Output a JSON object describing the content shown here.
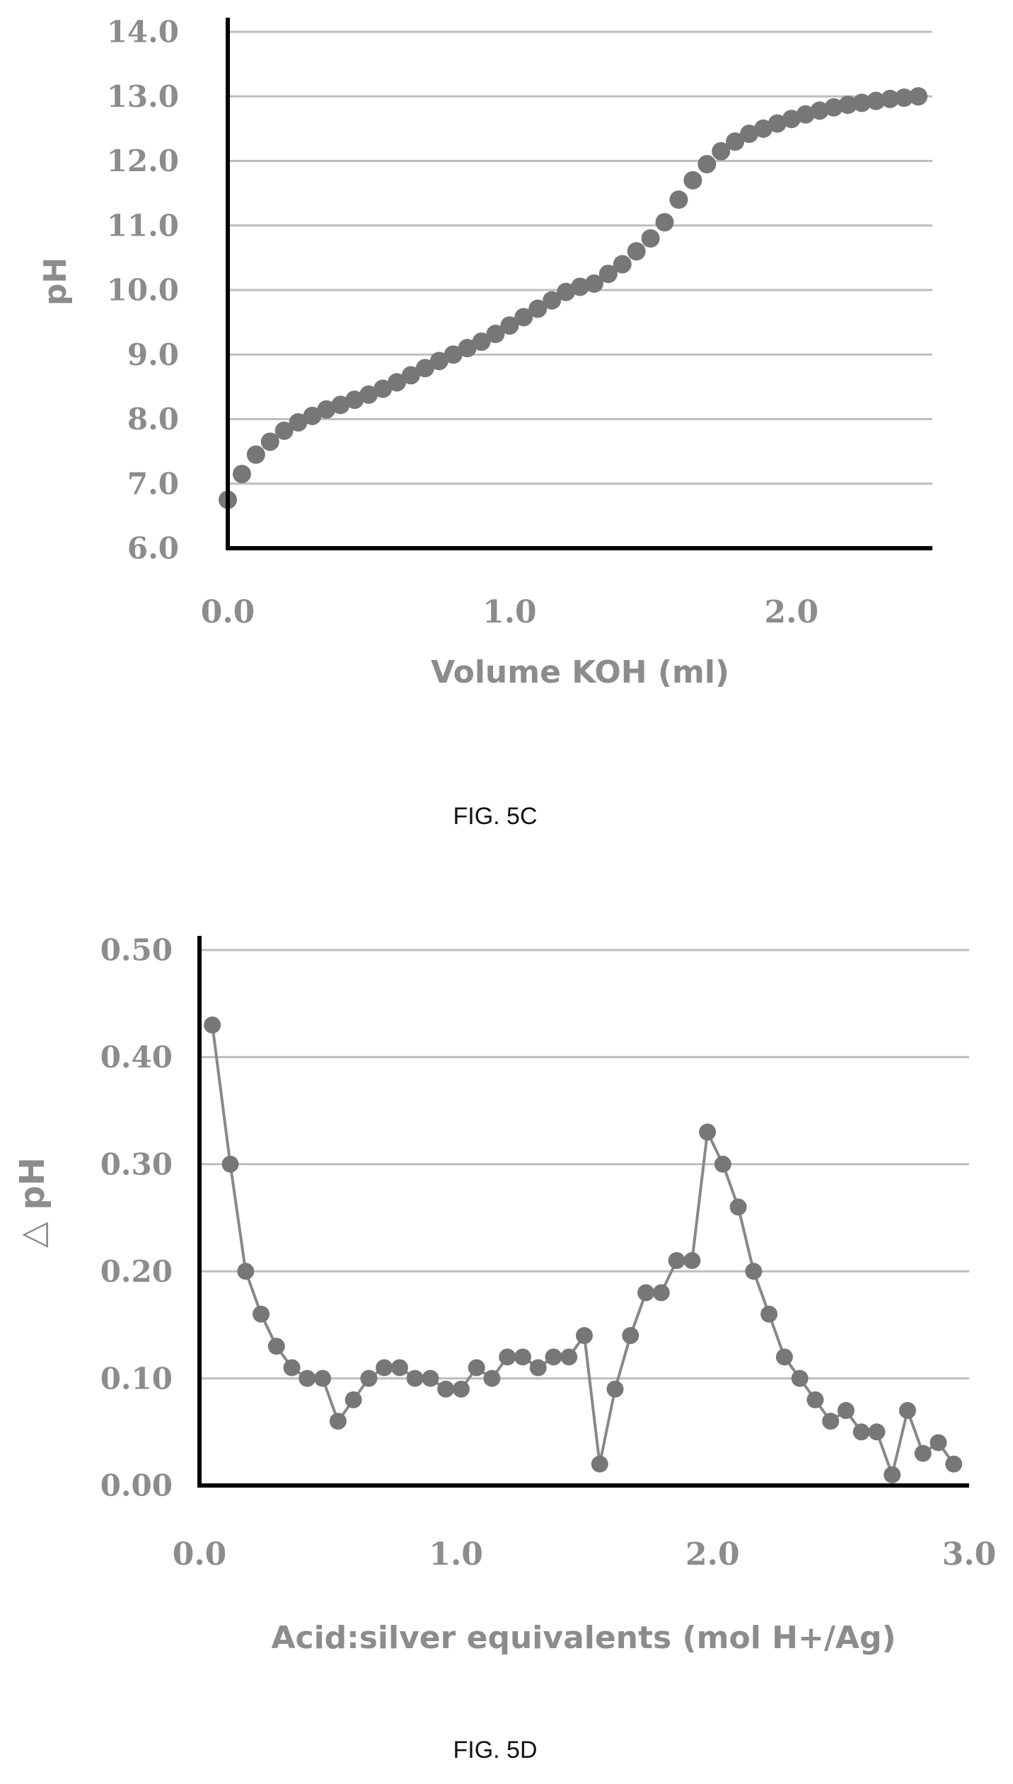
{
  "colors": {
    "axis": "#000000",
    "grid": "#bdbdbd",
    "marker": "#777777",
    "line": "#888888",
    "text": "#8c8c8c",
    "caption": "#111111"
  },
  "chart_data": [
    {
      "id": "fig5c",
      "type": "scatter",
      "caption": "FIG. 5C",
      "title": "",
      "xlabel": "Volume KOH (ml)",
      "ylabel": "pH",
      "xlim": [
        0,
        2.5
      ],
      "ylim": [
        6.0,
        14.0
      ],
      "xticks": [
        0,
        1,
        2
      ],
      "xtick_labels": [
        "0.0",
        "1.0",
        "2.0"
      ],
      "yticks": [
        6,
        7,
        8,
        9,
        10,
        11,
        12,
        13,
        14
      ],
      "ytick_labels": [
        "6.0",
        "7.0",
        "8.0",
        "9.0",
        "10.0",
        "11.0",
        "12.0",
        "13.0",
        "14.0"
      ],
      "grid": true,
      "connect": false,
      "series": [
        {
          "x": [
            0.0,
            0.05,
            0.1,
            0.15,
            0.2,
            0.25,
            0.3,
            0.35,
            0.4,
            0.45,
            0.5,
            0.55,
            0.6,
            0.65,
            0.7,
            0.75,
            0.8,
            0.85,
            0.9,
            0.95,
            1.0,
            1.05,
            1.1,
            1.15,
            1.2,
            1.25,
            1.3,
            1.35,
            1.4,
            1.45,
            1.5,
            1.55,
            1.6,
            1.65,
            1.7,
            1.75,
            1.8,
            1.85,
            1.9,
            1.95,
            2.0,
            2.05,
            2.1,
            2.15,
            2.2,
            2.25,
            2.3,
            2.35,
            2.4,
            2.45
          ],
          "y": [
            6.75,
            7.15,
            7.45,
            7.65,
            7.82,
            7.95,
            8.05,
            8.15,
            8.22,
            8.3,
            8.38,
            8.47,
            8.57,
            8.68,
            8.79,
            8.9,
            9.0,
            9.1,
            9.2,
            9.32,
            9.45,
            9.58,
            9.71,
            9.84,
            9.97,
            10.05,
            10.1,
            10.25,
            10.4,
            10.6,
            10.8,
            11.05,
            11.4,
            11.7,
            11.95,
            12.15,
            12.3,
            12.42,
            12.5,
            12.58,
            12.65,
            12.72,
            12.78,
            12.83,
            12.87,
            12.9,
            12.93,
            12.96,
            12.98,
            13.0
          ]
        }
      ]
    },
    {
      "id": "fig5d",
      "type": "line",
      "caption": "FIG. 5D",
      "title": "",
      "xlabel": "Acid:silver equivalents (mol H+/Ag)",
      "ylabel": "△ pH",
      "xlim": [
        0,
        3.0
      ],
      "ylim": [
        0.0,
        0.5
      ],
      "xticks": [
        0,
        1,
        2,
        3
      ],
      "xtick_labels": [
        "0.0",
        "1.0",
        "2.0",
        "3.0"
      ],
      "yticks": [
        0,
        0.1,
        0.2,
        0.3,
        0.4,
        0.5
      ],
      "ytick_labels": [
        "0.00",
        "0.10",
        "0.20",
        "0.30",
        "0.40",
        "0.50"
      ],
      "grid": true,
      "connect": true,
      "series": [
        {
          "x": [
            0.05,
            0.12,
            0.18,
            0.24,
            0.3,
            0.36,
            0.42,
            0.48,
            0.54,
            0.6,
            0.66,
            0.72,
            0.78,
            0.84,
            0.9,
            0.96,
            1.02,
            1.08,
            1.14,
            1.2,
            1.26,
            1.32,
            1.38,
            1.44,
            1.5,
            1.56,
            1.62,
            1.68,
            1.74,
            1.8,
            1.86,
            1.92,
            1.98,
            2.04,
            2.1,
            2.16,
            2.22,
            2.28,
            2.34,
            2.4,
            2.46,
            2.52,
            2.58,
            2.64,
            2.7,
            2.76,
            2.82,
            2.88,
            2.94
          ],
          "y": [
            0.43,
            0.3,
            0.2,
            0.16,
            0.13,
            0.11,
            0.1,
            0.1,
            0.06,
            0.08,
            0.1,
            0.11,
            0.11,
            0.1,
            0.1,
            0.09,
            0.09,
            0.11,
            0.1,
            0.12,
            0.12,
            0.11,
            0.12,
            0.12,
            0.14,
            0.02,
            0.09,
            0.14,
            0.18,
            0.18,
            0.21,
            0.21,
            0.33,
            0.3,
            0.26,
            0.2,
            0.16,
            0.12,
            0.1,
            0.08,
            0.06,
            0.07,
            0.05,
            0.05,
            0.01,
            0.07,
            0.03,
            0.04,
            0.02
          ]
        }
      ]
    }
  ]
}
